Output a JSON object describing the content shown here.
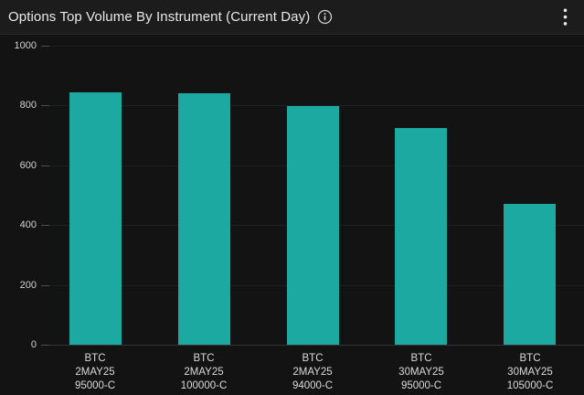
{
  "header": {
    "title": "Options Top Volume By Instrument (Current Day)",
    "info_icon": "info-circle",
    "menu_icon": "kebab-menu"
  },
  "colors": {
    "bar": "#1ba9a1",
    "widget_background": "#131313",
    "header_background": "#1c1c1c",
    "gridline": "#1f1f1f",
    "zero_axis_line": "#343434",
    "tick": "#4d4d4d",
    "axis_label_text": "#d2d2d2",
    "title_text": "#e9e9e9"
  },
  "chart_data": {
    "type": "bar",
    "title": "Options Top Volume By Instrument (Current Day)",
    "categories": [
      [
        "BTC",
        "2MAY25",
        "95000-C"
      ],
      [
        "BTC",
        "2MAY25",
        "100000-C"
      ],
      [
        "BTC",
        "2MAY25",
        "94000-C"
      ],
      [
        "BTC",
        "30MAY25",
        "95000-C"
      ],
      [
        "BTC",
        "30MAY25",
        "105000-C"
      ]
    ],
    "values": [
      843,
      840,
      798,
      724,
      470
    ],
    "xlabel": "",
    "ylabel": "",
    "ylim": [
      0,
      1000
    ],
    "yticks": [
      0,
      200,
      400,
      600,
      800,
      1000
    ],
    "grid": true,
    "legend": false,
    "bar_color": "#1ba9a1"
  }
}
